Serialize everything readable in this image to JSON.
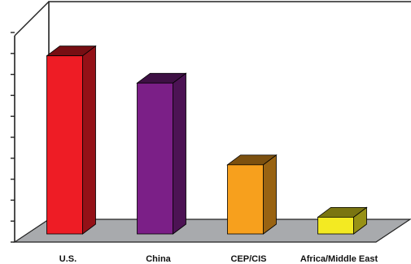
{
  "chart_data": {
    "type": "bar",
    "categories": [
      "U.S.",
      "China",
      "CEP/CIS",
      "Africa/Middle East"
    ],
    "values": [
      85,
      72,
      33,
      8
    ],
    "ylim": [
      0,
      100
    ],
    "y_tick_count": 10,
    "colors": {
      "bars": [
        "#ee1c25",
        "#7b1f87",
        "#f7a01d",
        "#f3ea22"
      ],
      "floor": "#a8aaad",
      "frame": "#222222"
    },
    "style": "3d-column",
    "grid": false,
    "legend": "none"
  }
}
